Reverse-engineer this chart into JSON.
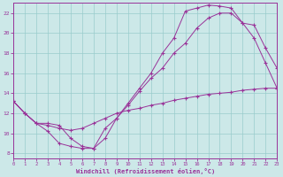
{
  "xlabel": "Windchill (Refroidissement éolien,°C)",
  "bg_color": "#cce8e8",
  "line_color": "#993399",
  "grid_color": "#99cccc",
  "xlim": [
    0,
    23
  ],
  "ylim": [
    7.5,
    23.0
  ],
  "xticks": [
    0,
    1,
    2,
    3,
    4,
    5,
    6,
    7,
    8,
    9,
    10,
    11,
    12,
    13,
    14,
    15,
    16,
    17,
    18,
    19,
    20,
    21,
    22,
    23
  ],
  "yticks": [
    8,
    10,
    12,
    14,
    16,
    18,
    20,
    22
  ],
  "line1_x": [
    0,
    1,
    2,
    3,
    4,
    5,
    6,
    7,
    8,
    9,
    10,
    11,
    12,
    13,
    14,
    15,
    16,
    17,
    18,
    19,
    20,
    21,
    22,
    23
  ],
  "line1_y": [
    13.2,
    12.0,
    11.0,
    10.2,
    9.0,
    8.7,
    8.5,
    8.5,
    9.5,
    11.5,
    13.0,
    14.5,
    16.0,
    18.0,
    19.5,
    22.2,
    22.5,
    22.8,
    22.7,
    22.5,
    21.0,
    20.8,
    18.5,
    16.5
  ],
  "line2_x": [
    0,
    1,
    2,
    3,
    4,
    5,
    6,
    7,
    8,
    9,
    10,
    11,
    12,
    13,
    14,
    15,
    16,
    17,
    18,
    19,
    20,
    21,
    22,
    23
  ],
  "line2_y": [
    13.2,
    12.0,
    11.0,
    10.8,
    10.5,
    10.3,
    10.5,
    11.0,
    11.5,
    12.0,
    12.3,
    12.5,
    12.8,
    13.0,
    13.3,
    13.5,
    13.7,
    13.9,
    14.0,
    14.1,
    14.3,
    14.4,
    14.5,
    14.5
  ],
  "line3_x": [
    0,
    1,
    2,
    3,
    4,
    5,
    6,
    7,
    8,
    9,
    10,
    11,
    12,
    13,
    14,
    15,
    16,
    17,
    18,
    19,
    20,
    21,
    22,
    23
  ],
  "line3_y": [
    13.2,
    12.0,
    11.0,
    11.0,
    10.8,
    9.5,
    8.7,
    8.5,
    10.5,
    11.5,
    12.8,
    14.2,
    15.5,
    16.5,
    18.0,
    19.0,
    20.5,
    21.5,
    22.0,
    22.0,
    21.0,
    19.5,
    17.0,
    14.5
  ]
}
